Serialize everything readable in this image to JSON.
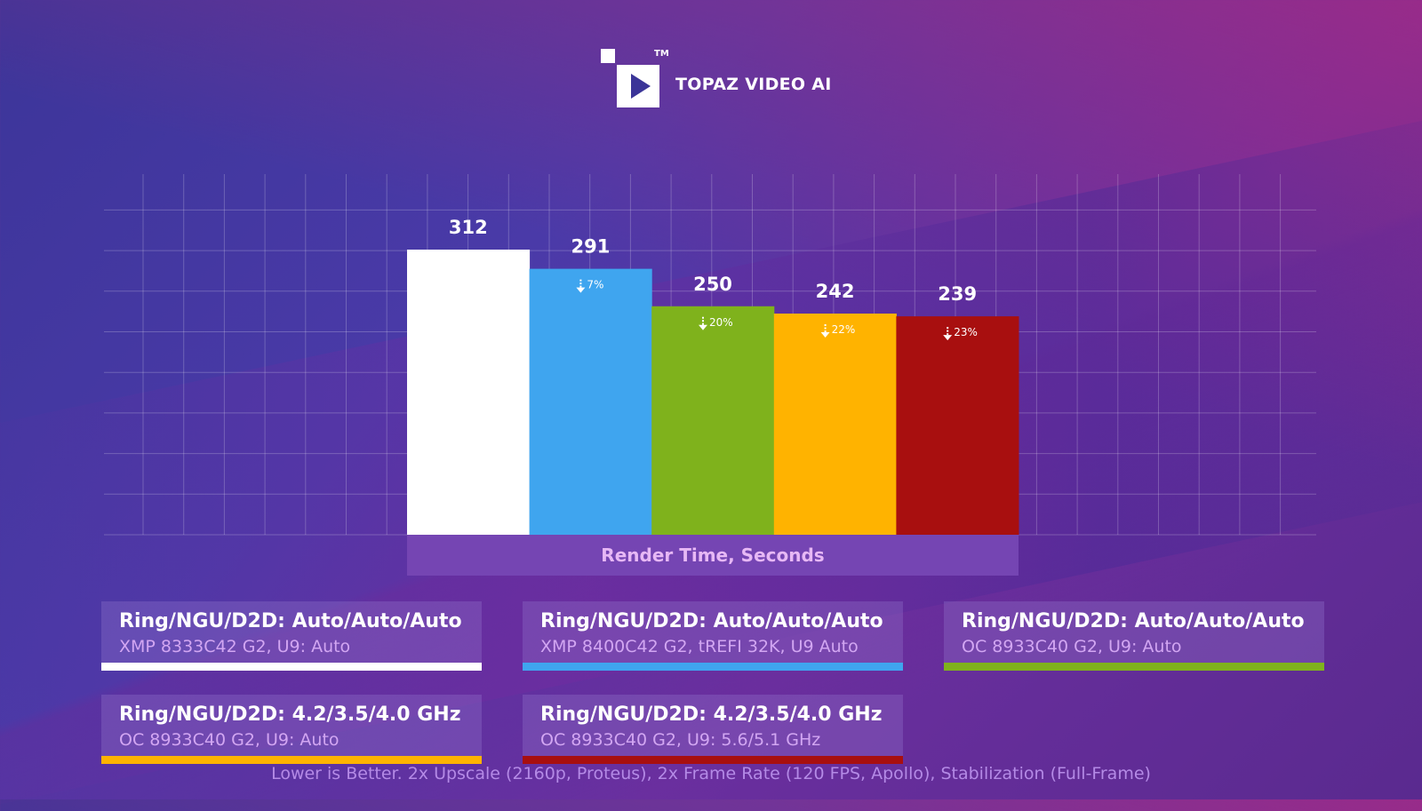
{
  "brand": {
    "name": "TOPAZ VIDEO AI",
    "tm": "TM"
  },
  "chart_data": {
    "type": "bar",
    "xlabel": "Render Time, Seconds",
    "ylim": [
      0,
      420
    ],
    "grid": true,
    "categories": [
      "Ring/NGU/D2D: Auto/Auto/Auto — XMP 8333C42 G2, U9: Auto",
      "Ring/NGU/D2D: Auto/Auto/Auto — XMP 8400C42 G2, tREFI 32K, U9 Auto",
      "Ring/NGU/D2D: Auto/Auto/Auto — OC 8933C40 G2, U9: Auto",
      "Ring/NGU/D2D: 4.2/3.5/4.0 GHz — OC 8933C40 G2, U9: Auto",
      "Ring/NGU/D2D: 4.2/3.5/4.0 GHz — OC 8933C40 G2, U9: 5.6/5.1 GHz"
    ],
    "values": [
      312,
      291,
      250,
      242,
      239
    ],
    "reductions": [
      "",
      "7%",
      "20%",
      "22%",
      "23%"
    ],
    "colors": [
      "#ffffff",
      "#3fa5ef",
      "#7fb21c",
      "#ffb300",
      "#a80f0f"
    ]
  },
  "legend": [
    {
      "title": "Ring/NGU/D2D: Auto/Auto/Auto",
      "subtitle": "XMP 8333C42 G2, U9: Auto",
      "color": "#ffffff"
    },
    {
      "title": "Ring/NGU/D2D: Auto/Auto/Auto",
      "subtitle": "XMP 8400C42 G2, tREFI 32K, U9 Auto",
      "color": "#3fa5ef"
    },
    {
      "title": "Ring/NGU/D2D: Auto/Auto/Auto",
      "subtitle": "OC 8933C40 G2, U9: Auto",
      "color": "#7fb21c"
    },
    {
      "title": "Ring/NGU/D2D: 4.2/3.5/4.0 GHz",
      "subtitle": "OC 8933C40 G2, U9: Auto",
      "color": "#ffb300"
    },
    {
      "title": "Ring/NGU/D2D: 4.2/3.5/4.0 GHz",
      "subtitle": "OC 8933C40 G2, U9: 5.6/5.1 GHz",
      "color": "#a80f0f"
    }
  ],
  "footnote": "Lower is Better. 2x Upscale (2160p, Proteus), 2x Frame Rate (120 FPS, Apollo), Stabilization (Full-Frame)"
}
